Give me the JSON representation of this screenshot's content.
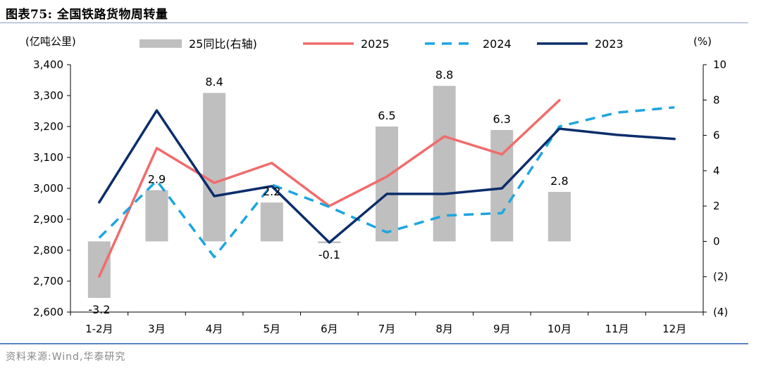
{
  "header": {
    "title": "图表75:   全国铁路货物周转量"
  },
  "footer": {
    "source": "资料来源:Wind,华泰研究"
  },
  "chart_data": {
    "type": "bar+line",
    "categories": [
      "1-2月",
      "3月",
      "4月",
      "5月",
      "6月",
      "7月",
      "8月",
      "9月",
      "10月",
      "11月",
      "12月"
    ],
    "left_axis": {
      "unit": "(亿吨公里)",
      "ylim": [
        2600,
        3400
      ],
      "ticks": [
        "2,600",
        "2,700",
        "2,800",
        "2,900",
        "3,000",
        "3,100",
        "3,200",
        "3,300",
        "3,400"
      ]
    },
    "right_axis": {
      "unit": "(%)",
      "ylim": [
        -4,
        10
      ],
      "ticks": [
        "(4)",
        "(2)",
        "0",
        "2",
        "4",
        "6",
        "8",
        "10"
      ]
    },
    "bars": {
      "name": "25同比(右轴)",
      "color": "#bfbfbf",
      "values": [
        -3.2,
        2.9,
        8.4,
        2.2,
        -0.1,
        6.5,
        8.8,
        6.3,
        2.8,
        null,
        null
      ],
      "labels": [
        "-3.2",
        "2.9",
        "8.4",
        "2.2",
        "-0.1",
        "6.5",
        "8.8",
        "6.3",
        "2.8",
        "",
        ""
      ]
    },
    "series": [
      {
        "name": "2025",
        "color": "#f06c6c",
        "dash": false,
        "values": [
          2715,
          3130,
          3018,
          3082,
          2943,
          3038,
          3168,
          3110,
          3285,
          null,
          null
        ]
      },
      {
        "name": "2024",
        "color": "#1ea5e0",
        "dash": true,
        "values": [
          2840,
          3025,
          2778,
          3012,
          2940,
          2858,
          2912,
          2920,
          3200,
          3245,
          3262
        ]
      },
      {
        "name": "2023",
        "color": "#0b2d6b",
        "dash": false,
        "values": [
          2955,
          3252,
          2975,
          3007,
          2825,
          2982,
          2982,
          3000,
          3193,
          3173,
          3160
        ]
      }
    ]
  }
}
